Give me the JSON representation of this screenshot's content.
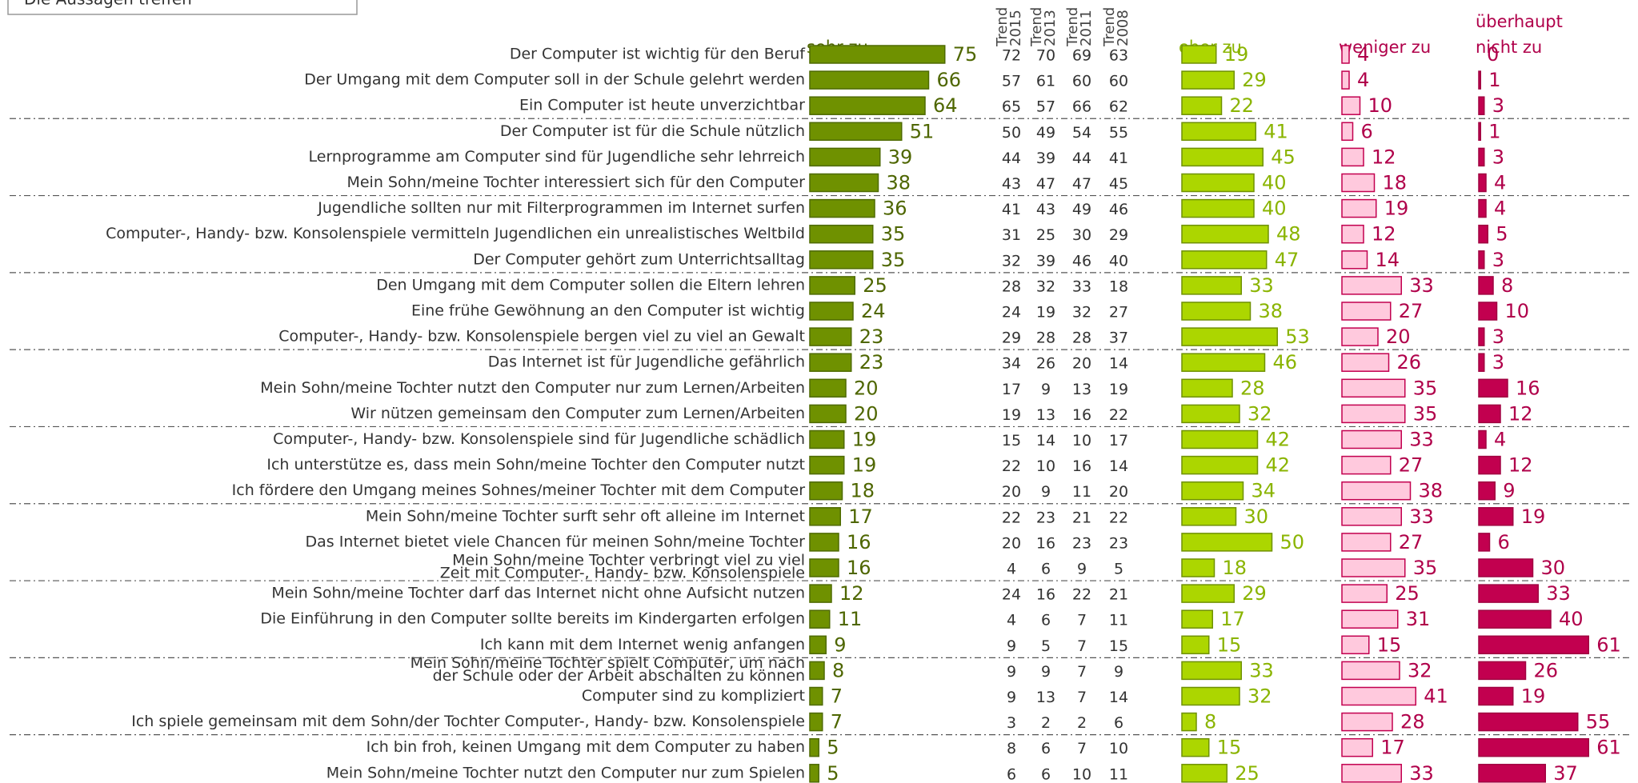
{
  "header_box": "Die Aussagen treffen",
  "chart_data": {
    "type": "bar",
    "categories": [
      "Der Computer ist wichtig für den Beruf",
      "Der Umgang mit dem Computer soll in der Schule gelehrt werden",
      "Ein Computer ist heute unverzichtbar",
      "Der Computer ist für die Schule nützlich",
      "Lernprogramme am Computer sind für Jugendliche sehr lehrreich",
      "Mein Sohn/meine Tochter  interessiert sich für den Computer",
      "Jugendliche sollten nur mit Filterprogrammen im Internet surfen",
      "Computer-, Handy- bzw. Konsolenspiele vermitteln Jugendlichen ein unrealistisches Weltbild",
      "Der Computer gehört zum Unterrichtsalltag",
      "Den Umgang mit dem Computer sollen die Eltern lehren",
      "Eine frühe Gewöhnung an den Computer ist wichtig",
      "Computer-, Handy- bzw. Konsolenspiele bergen viel zu viel an Gewalt",
      "Das Internet ist für Jugendliche gefährlich",
      "Mein Sohn/meine Tochter nutzt den Computer nur zum Lernen/Arbeiten",
      "Wir nützen gemeinsam den Computer zum Lernen/Arbeiten",
      "Computer-, Handy- bzw. Konsolenspiele sind für Jugendliche schädlich",
      "Ich unterstütze es, dass mein Sohn/meine Tochter den Computer nutzt",
      "Ich fördere den Umgang meines Sohnes/meiner Tochter mit dem Computer",
      "Mein Sohn/meine Tochter surft sehr oft alleine im Internet",
      "Das Internet bietet viele Chancen für meinen Sohn/meine Tochter",
      [
        "Mein Sohn/meine Tochter  verbringt viel zu viel",
        "Zeit mit Computer-, Handy- bzw. Konsolenspiele"
      ],
      "Mein Sohn/meine Tochter darf das Internet nicht ohne Aufsicht nutzen",
      "Die Einführung in den Computer sollte bereits im Kindergarten erfolgen",
      "Ich kann mit dem Internet wenig anfangen",
      [
        "Mein Sohn/meine Tochter spielt Computer, um nach",
        "der Schule oder der Arbeit abschalten zu können"
      ],
      "Computer sind zu kompliziert",
      "Ich spiele gemeinsam mit dem Sohn/der Tochter Computer-, Handy- bzw. Konsolenspiele",
      "Ich bin froh, keinen Umgang mit dem Computer zu haben",
      "Mein Sohn/meine Tochter nutzt den Computer nur zum Spielen"
    ],
    "series": [
      {
        "name": "sehr zu",
        "color": "#6f9100",
        "values": [
          75,
          66,
          64,
          51,
          39,
          38,
          36,
          35,
          35,
          25,
          24,
          23,
          23,
          20,
          20,
          19,
          19,
          18,
          17,
          16,
          16,
          12,
          11,
          9,
          8,
          7,
          7,
          5,
          5
        ]
      },
      {
        "name": "eher zu",
        "color": "#acd600",
        "values": [
          19,
          29,
          22,
          41,
          45,
          40,
          40,
          48,
          47,
          33,
          38,
          53,
          46,
          28,
          32,
          42,
          42,
          34,
          30,
          50,
          18,
          29,
          17,
          15,
          33,
          32,
          8,
          15,
          25
        ]
      },
      {
        "name": "weniger zu",
        "color": "#ffc9dd",
        "values": [
          4,
          4,
          10,
          6,
          12,
          18,
          19,
          12,
          14,
          33,
          27,
          20,
          26,
          35,
          35,
          33,
          27,
          38,
          33,
          27,
          35,
          25,
          31,
          15,
          32,
          41,
          28,
          17,
          33
        ]
      },
      {
        "name": [
          "überhaupt",
          "nicht zu"
        ],
        "color": "#c2004f",
        "values": [
          0,
          1,
          3,
          1,
          3,
          4,
          4,
          5,
          3,
          8,
          10,
          3,
          3,
          16,
          12,
          4,
          12,
          9,
          19,
          6,
          30,
          33,
          40,
          61,
          26,
          19,
          55,
          61,
          37
        ]
      }
    ],
    "trend": [
      {
        "label": "Trend",
        "year": 2015,
        "values": [
          72,
          57,
          65,
          50,
          44,
          43,
          41,
          31,
          32,
          28,
          24,
          29,
          34,
          17,
          19,
          15,
          22,
          20,
          22,
          20,
          4,
          24,
          4,
          9,
          9,
          9,
          3,
          8,
          6
        ]
      },
      {
        "label": "Trend",
        "year": 2013,
        "values": [
          70,
          61,
          57,
          49,
          39,
          47,
          43,
          25,
          39,
          32,
          19,
          28,
          26,
          9,
          13,
          14,
          10,
          9,
          23,
          16,
          6,
          16,
          6,
          5,
          9,
          13,
          2,
          6,
          6
        ]
      },
      {
        "label": "Trend",
        "year": 2011,
        "values": [
          69,
          60,
          66,
          54,
          44,
          47,
          49,
          30,
          46,
          33,
          32,
          28,
          20,
          13,
          16,
          10,
          16,
          11,
          21,
          23,
          9,
          22,
          7,
          7,
          7,
          7,
          2,
          7,
          10
        ]
      },
      {
        "label": "Trend",
        "year": 2008,
        "values": [
          63,
          60,
          62,
          55,
          41,
          45,
          46,
          29,
          40,
          18,
          27,
          37,
          14,
          19,
          22,
          17,
          14,
          20,
          22,
          23,
          5,
          21,
          11,
          15,
          9,
          14,
          6,
          10,
          11
        ]
      }
    ]
  }
}
